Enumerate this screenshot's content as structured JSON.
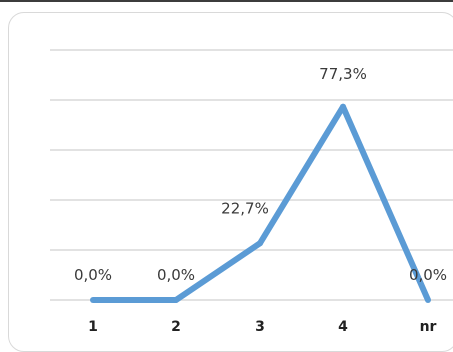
{
  "chart_data": {
    "type": "line",
    "categories": [
      "1",
      "2",
      "3",
      "4",
      "nr"
    ],
    "series": [
      {
        "values": [
          0.0,
          0.0,
          22.7,
          77.3,
          0.0
        ],
        "data_labels": [
          "0,0%",
          "0,0%",
          "22,7%",
          "77,3%",
          "0,0%"
        ]
      }
    ],
    "ylim": [
      0,
      100
    ],
    "grid": true,
    "legend": "none",
    "line_color": "#5b9bd5"
  }
}
